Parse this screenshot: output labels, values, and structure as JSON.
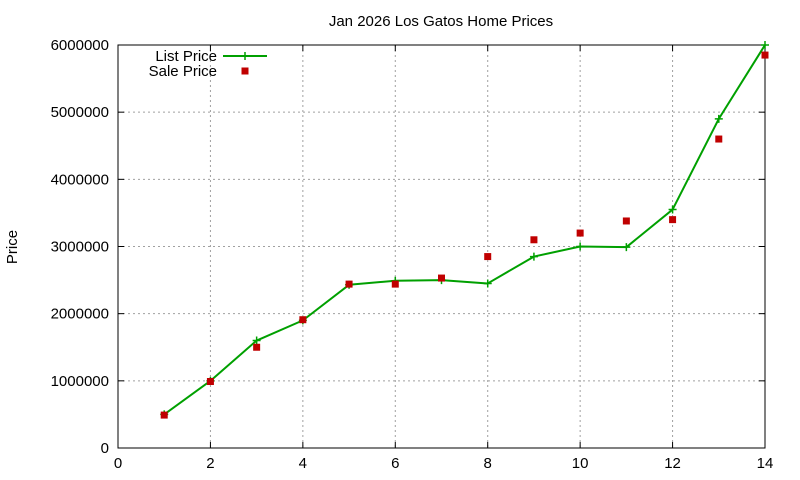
{
  "chart_data": {
    "type": "line",
    "title": "Jan 2026 Los Gatos Home Prices",
    "xlabel": "",
    "ylabel": "Price",
    "xlim": [
      0,
      14
    ],
    "ylim": [
      0,
      6000000
    ],
    "x_ticks": [
      "0",
      "2",
      "4",
      "6",
      "8",
      "10",
      "12",
      "14"
    ],
    "y_ticks": [
      "0",
      "1000000",
      "2000000",
      "3000000",
      "4000000",
      "5000000",
      "6000000"
    ],
    "grid": true,
    "legend_position": "top-left",
    "series": [
      {
        "name": "List Price",
        "type": "line",
        "marker": "plus",
        "color": "#00a000",
        "x": [
          1,
          2,
          3,
          4,
          5,
          6,
          7,
          8,
          9,
          10,
          11,
          12,
          13,
          14
        ],
        "values": [
          500000,
          1000000,
          1600000,
          1900000,
          2430000,
          2490000,
          2500000,
          2450000,
          2850000,
          3000000,
          2990000,
          3550000,
          4900000,
          6000000
        ]
      },
      {
        "name": "Sale Price",
        "type": "scatter",
        "marker": "square",
        "color": "#c00000",
        "x": [
          1,
          2,
          3,
          4,
          5,
          6,
          7,
          8,
          9,
          10,
          11,
          12,
          13,
          14
        ],
        "values": [
          490000,
          990000,
          1500000,
          1910000,
          2440000,
          2440000,
          2530000,
          2850000,
          3100000,
          3200000,
          3380000,
          3400000,
          4600000,
          5850000
        ]
      }
    ]
  }
}
